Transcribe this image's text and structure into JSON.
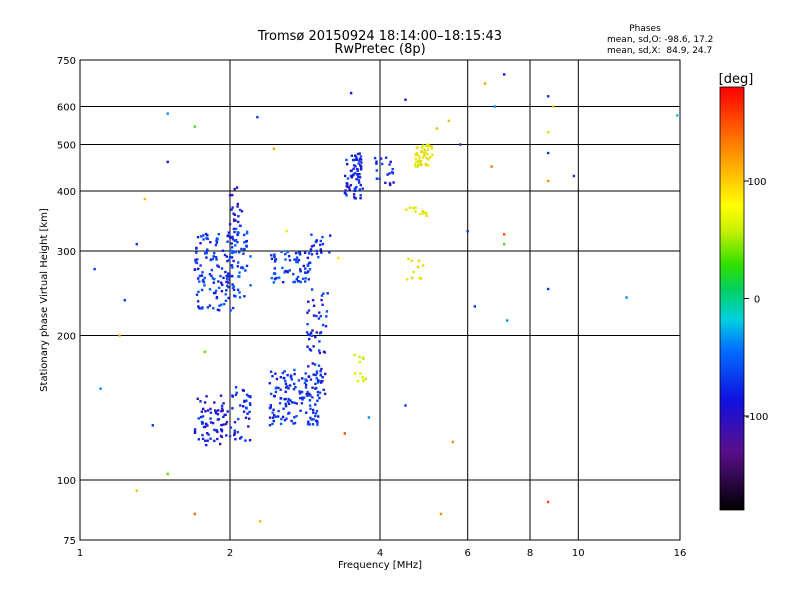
{
  "chart_data": {
    "type": "scatter",
    "title": "Tromsø 20150924 18:14:00–18:15:43",
    "subtitle": "RwPretec (8p)",
    "xlabel": "Frequency [MHz]",
    "ylabel": "Stationary phase Virtual Height [km]",
    "xscale": "log",
    "yscale": "log",
    "xlim": [
      1,
      16
    ],
    "ylim": [
      75,
      750
    ],
    "xticks": [
      1,
      2,
      4,
      6,
      8,
      10,
      16
    ],
    "yticks": [
      75,
      100,
      200,
      300,
      400,
      500,
      600,
      750
    ],
    "grid": true,
    "annotation": {
      "header": "Phases",
      "line_o": "mean, sd,O: -98.6, 17.2",
      "line_x": "mean, sd,X:  84.9, 24.7"
    },
    "colorbar": {
      "label": "[deg]",
      "ticks": [
        100,
        0,
        -100
      ],
      "range": [
        -180,
        180
      ]
    },
    "clusters": [
      {
        "f": [
          1.7,
          1.98
        ],
        "h": [
          118,
          150
        ],
        "phase": -110,
        "n": 70
      },
      {
        "f": [
          2.0,
          2.2
        ],
        "h": [
          120,
          158
        ],
        "phase": -105,
        "n": 40
      },
      {
        "f": [
          2.4,
          3.05
        ],
        "h": [
          130,
          170
        ],
        "phase": -100,
        "n": 140
      },
      {
        "f": [
          2.85,
          3.15
        ],
        "h": [
          150,
          250
        ],
        "phase": -105,
        "n": 60
      },
      {
        "f": [
          1.7,
          2.05
        ],
        "h": [
          225,
          330
        ],
        "phase": -100,
        "n": 130
      },
      {
        "f": [
          2.0,
          2.2
        ],
        "h": [
          240,
          340
        ],
        "phase": -95,
        "n": 50
      },
      {
        "f": [
          2.0,
          2.12
        ],
        "h": [
          340,
          410
        ],
        "phase": -110,
        "n": 18
      },
      {
        "f": [
          2.4,
          2.9
        ],
        "h": [
          258,
          300
        ],
        "phase": -95,
        "n": 70
      },
      {
        "f": [
          2.9,
          3.2
        ],
        "h": [
          290,
          325
        ],
        "phase": -100,
        "n": 20
      },
      {
        "f": [
          3.4,
          3.7
        ],
        "h": [
          385,
          480
        ],
        "phase": -105,
        "n": 70
      },
      {
        "f": [
          3.9,
          4.3
        ],
        "h": [
          410,
          470
        ],
        "phase": -105,
        "n": 20
      },
      {
        "f": [
          4.7,
          5.1
        ],
        "h": [
          450,
          500
        ],
        "phase": 100,
        "n": 45
      },
      {
        "f": [
          4.5,
          5.0
        ],
        "h": [
          355,
          370
        ],
        "phase": 100,
        "n": 12
      },
      {
        "f": [
          3.55,
          3.75
        ],
        "h": [
          160,
          185
        ],
        "phase": 100,
        "n": 12
      },
      {
        "f": [
          4.5,
          4.9
        ],
        "h": [
          260,
          290
        ],
        "phase": 100,
        "n": 10
      }
    ],
    "points": [
      {
        "f": 1.07,
        "h": 275,
        "phase": -100
      },
      {
        "f": 1.2,
        "h": 200,
        "phase": 130
      },
      {
        "f": 1.23,
        "h": 237,
        "phase": -100
      },
      {
        "f": 1.5,
        "h": 460,
        "phase": -110
      },
      {
        "f": 1.5,
        "h": 580,
        "phase": -60
      },
      {
        "f": 1.7,
        "h": 545,
        "phase": 30
      },
      {
        "f": 1.78,
        "h": 185,
        "phase": 40
      },
      {
        "f": 2.27,
        "h": 570,
        "phase": -100
      },
      {
        "f": 2.45,
        "h": 490,
        "phase": 130
      },
      {
        "f": 3.5,
        "h": 640,
        "phase": -110
      },
      {
        "f": 4.5,
        "h": 620,
        "phase": -110
      },
      {
        "f": 5.2,
        "h": 540,
        "phase": 120
      },
      {
        "f": 5.5,
        "h": 560,
        "phase": 120
      },
      {
        "f": 5.8,
        "h": 500,
        "phase": -100
      },
      {
        "f": 6.0,
        "h": 330,
        "phase": -100
      },
      {
        "f": 6.2,
        "h": 230,
        "phase": -100
      },
      {
        "f": 6.5,
        "h": 670,
        "phase": 130
      },
      {
        "f": 6.7,
        "h": 450,
        "phase": 150
      },
      {
        "f": 6.8,
        "h": 600,
        "phase": -60
      },
      {
        "f": 7.1,
        "h": 700,
        "phase": -110
      },
      {
        "f": 7.1,
        "h": 325,
        "phase": 160
      },
      {
        "f": 7.1,
        "h": 310,
        "phase": 30
      },
      {
        "f": 7.2,
        "h": 215,
        "phase": -60
      },
      {
        "f": 8.7,
        "h": 630,
        "phase": -100
      },
      {
        "f": 8.7,
        "h": 530,
        "phase": 110
      },
      {
        "f": 8.7,
        "h": 480,
        "phase": -100
      },
      {
        "f": 8.7,
        "h": 420,
        "phase": 140
      },
      {
        "f": 8.9,
        "h": 600,
        "phase": 120
      },
      {
        "f": 8.7,
        "h": 250,
        "phase": -100
      },
      {
        "f": 8.7,
        "h": 90,
        "phase": 160
      },
      {
        "f": 9.8,
        "h": 430,
        "phase": -100
      },
      {
        "f": 12.5,
        "h": 240,
        "phase": -60
      },
      {
        "f": 15.8,
        "h": 575,
        "phase": -30
      },
      {
        "f": 1.3,
        "h": 95,
        "phase": 120
      },
      {
        "f": 1.5,
        "h": 103,
        "phase": 40
      },
      {
        "f": 1.7,
        "h": 85,
        "phase": 150
      },
      {
        "f": 2.3,
        "h": 82,
        "phase": 120
      },
      {
        "f": 3.4,
        "h": 125,
        "phase": 160
      },
      {
        "f": 3.8,
        "h": 135,
        "phase": -60
      },
      {
        "f": 4.5,
        "h": 143,
        "phase": -100
      },
      {
        "f": 5.3,
        "h": 85,
        "phase": 140
      },
      {
        "f": 5.6,
        "h": 120,
        "phase": 140
      },
      {
        "f": 1.35,
        "h": 385,
        "phase": 120
      },
      {
        "f": 1.4,
        "h": 130,
        "phase": -100
      },
      {
        "f": 2.6,
        "h": 330,
        "phase": 100
      },
      {
        "f": 3.3,
        "h": 290,
        "phase": 100
      },
      {
        "f": 1.1,
        "h": 155,
        "phase": -60
      },
      {
        "f": 1.3,
        "h": 310,
        "phase": -100
      }
    ]
  }
}
